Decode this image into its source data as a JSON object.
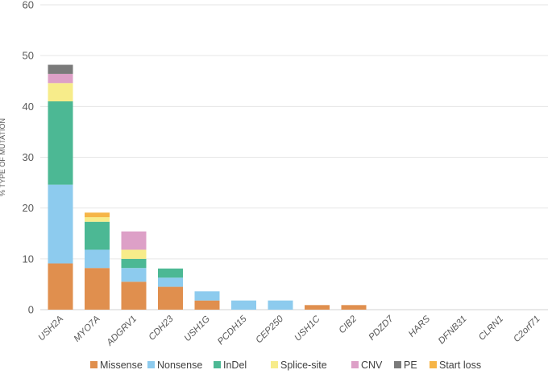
{
  "chart_data": {
    "type": "bar",
    "stacked": true,
    "ylabel": "% TYPE OF MUTATION",
    "ylim": [
      0,
      60
    ],
    "yticks": [
      0,
      10,
      20,
      30,
      40,
      50,
      60
    ],
    "grid": true,
    "legend_position": "bottom",
    "categories": [
      "USH2A",
      "MYO7A",
      "ADGRV1",
      "CDH23",
      "USH1G",
      "PCDH15",
      "CEP250",
      "USH1C",
      "CIB2",
      "PDZD7",
      "HARS",
      "DFNB31",
      "CLRN1",
      "C2orf71"
    ],
    "series": [
      {
        "name": "Missense",
        "color": "#E08F4E",
        "values": [
          9.1,
          8.2,
          5.5,
          4.5,
          1.8,
          0,
          0,
          0.9,
          0.9,
          0,
          0,
          0,
          0,
          0
        ]
      },
      {
        "name": "Nonsense",
        "color": "#8DCBEE",
        "values": [
          15.5,
          3.6,
          2.7,
          1.8,
          1.8,
          1.8,
          1.8,
          0,
          0,
          0,
          0,
          0,
          0,
          0
        ]
      },
      {
        "name": "InDel",
        "color": "#4CB894",
        "values": [
          16.4,
          5.5,
          1.8,
          1.8,
          0,
          0,
          0,
          0,
          0,
          0,
          0,
          0,
          0,
          0
        ]
      },
      {
        "name": "Splice-site",
        "color": "#F7EC8A",
        "values": [
          3.6,
          0.9,
          1.8,
          0,
          0,
          0,
          0,
          0,
          0,
          0,
          0,
          0,
          0,
          0
        ]
      },
      {
        "name": "CNV",
        "color": "#DDA0C7",
        "values": [
          1.8,
          0,
          3.6,
          0,
          0,
          0,
          0,
          0,
          0,
          0,
          0,
          0,
          0,
          0
        ]
      },
      {
        "name": "PE",
        "color": "#7A7A7A",
        "values": [
          1.8,
          0,
          0,
          0,
          0,
          0,
          0,
          0,
          0,
          0,
          0,
          0,
          0,
          0
        ]
      },
      {
        "name": "Start loss",
        "color": "#F6B547",
        "values": [
          0,
          0.9,
          0,
          0,
          0,
          0,
          0,
          0,
          0,
          0,
          0,
          0,
          0,
          0
        ]
      }
    ]
  }
}
